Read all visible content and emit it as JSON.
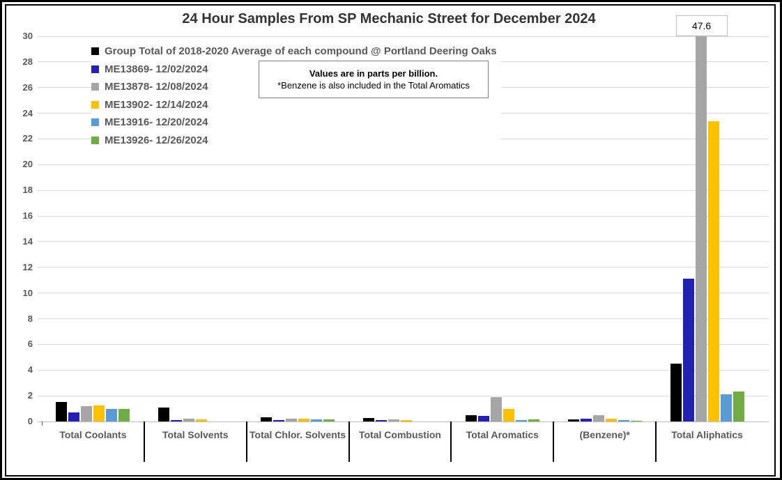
{
  "chart_data": {
    "type": "bar",
    "title": "24 Hour Samples From SP Mechanic Street for December 2024",
    "unit": "parts per billion",
    "note": {
      "line1": "Values are in parts per billion.",
      "line2": "*Benzene is also included in the Total Aromatics"
    },
    "categories": [
      "Total Coolants",
      "Total Solvents",
      "Total Chlor. Solvents",
      "Total Combustion",
      "Total Aromatics",
      "(Benzene)*",
      "Total Aliphatics"
    ],
    "yticks": [
      0,
      2,
      4,
      6,
      8,
      10,
      12,
      14,
      16,
      18,
      20,
      22,
      24,
      26,
      28,
      30
    ],
    "ylim": [
      0,
      30
    ],
    "grid": true,
    "legend_position": "top-left",
    "series": [
      {
        "name": "Group Total of 2018-2020 Average of each compound @ Portland Deering Oaks",
        "color": "#000000",
        "values": [
          1.5,
          1.1,
          0.3,
          0.25,
          0.5,
          0.15,
          4.5
        ]
      },
      {
        "name": "ME13869- 12/02/2024",
        "color": "#2222B2",
        "values": [
          0.7,
          0.1,
          0.1,
          0.1,
          0.45,
          0.2,
          11.1
        ]
      },
      {
        "name": "ME13878- 12/08/2024",
        "color": "#A6A6A6",
        "values": [
          1.2,
          0.2,
          0.2,
          0.15,
          1.9,
          0.5,
          47.6
        ]
      },
      {
        "name": "ME13902- 12/14/2024",
        "color": "#FFC000",
        "values": [
          1.25,
          0.15,
          0.2,
          0.1,
          0.95,
          0.2,
          23.4
        ]
      },
      {
        "name": "ME13916- 12/20/2024",
        "color": "#5B9BD5",
        "values": [
          1.0,
          0,
          0.15,
          0,
          0.1,
          0.1,
          2.1
        ]
      },
      {
        "name": "ME13926- 12/26/2024",
        "color": "#70AD47",
        "values": [
          1.0,
          0,
          0.15,
          0,
          0.15,
          0.05,
          2.35
        ]
      }
    ],
    "clipped_bar_label": {
      "text": "47.6",
      "series_index": 2,
      "category_index": 6
    }
  }
}
